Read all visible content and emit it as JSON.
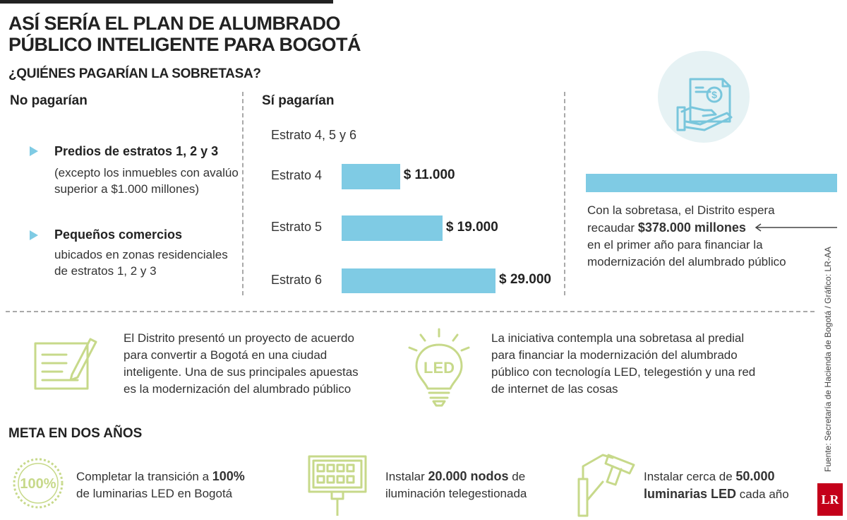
{
  "title_line1": "ASÍ SERÍA EL PLAN DE ALUMBRADO",
  "title_line2": "PÚBLICO INTELIGENTE PARA BOGOTÁ",
  "subtitle": "¿QUIÉNES PAGARÍAN LA SOBRETASA?",
  "no_pagarian": {
    "heading": "No pagarían",
    "items": [
      {
        "title": "Predios de estratos 1, 2 y 3",
        "lines": [
          "(excepto los inmuebles con avalúo",
          "superior a $1.000 millones)"
        ]
      },
      {
        "title": "Pequeños comercios",
        "lines": [
          "ubicados en zonas residenciales",
          "de estratos 1, 2 y 3"
        ]
      }
    ]
  },
  "si_pagarian": {
    "heading": "Sí pagarían",
    "group_label": "Estrato 4, 5 y 6"
  },
  "chart_data": {
    "type": "bar",
    "orientation": "horizontal",
    "categories": [
      "Estrato 4",
      "Estrato 5",
      "Estrato 6"
    ],
    "values": [
      11000,
      19000,
      29000
    ],
    "value_labels": [
      "$ 11.000",
      "$ 19.000",
      "$ 29.000"
    ],
    "title": "",
    "xlabel": "",
    "ylabel": "",
    "bar_color": "#7fcbe4"
  },
  "recaudo": {
    "line1": "Con la sobretasa, el Distrito espera",
    "line2_pre": "recaudar ",
    "line2_bold": "$378.000 millones",
    "line3": "en el primer año para financiar la",
    "line4": "modernización del alumbrado público"
  },
  "proyecto": {
    "lines": [
      "El Distrito presentó un proyecto de acuerdo",
      "para convertir a Bogotá en una ciudad",
      "inteligente. Una de sus principales apuestas",
      "es la modernización del alumbrado público"
    ]
  },
  "iniciativa": {
    "led_label": "LED",
    "lines": [
      "La iniciativa contempla una sobretasa al predial",
      "para financiar la modernización del alumbrado",
      "público con tecnología LED, telegestión y una red",
      "de internet de las cosas"
    ]
  },
  "meta": {
    "heading": "META EN DOS AÑOS",
    "items": [
      {
        "icon_label": "100%",
        "pre": "Completar la transición a ",
        "bold": "100%",
        "line2": "de luminarias LED en Bogotá"
      },
      {
        "pre": "Instalar ",
        "bold": "20.000 nodos",
        "post": " de",
        "line2": "iluminación telegestionada"
      },
      {
        "pre": "Instalar cerca de ",
        "bold": "50.000",
        "line2_bold": "luminarias LED",
        "line2_post": " cada año"
      }
    ]
  },
  "source": "Fuente: Secretaría de Hacienda de Bogotá / Gráfico: LR-AA",
  "logo": "LR",
  "colors": {
    "accent_blue": "#7fcbe4",
    "icon_green": "#c7d98a",
    "icon_blue": "#79c6dc",
    "circle_bg": "#e6f2f4"
  }
}
